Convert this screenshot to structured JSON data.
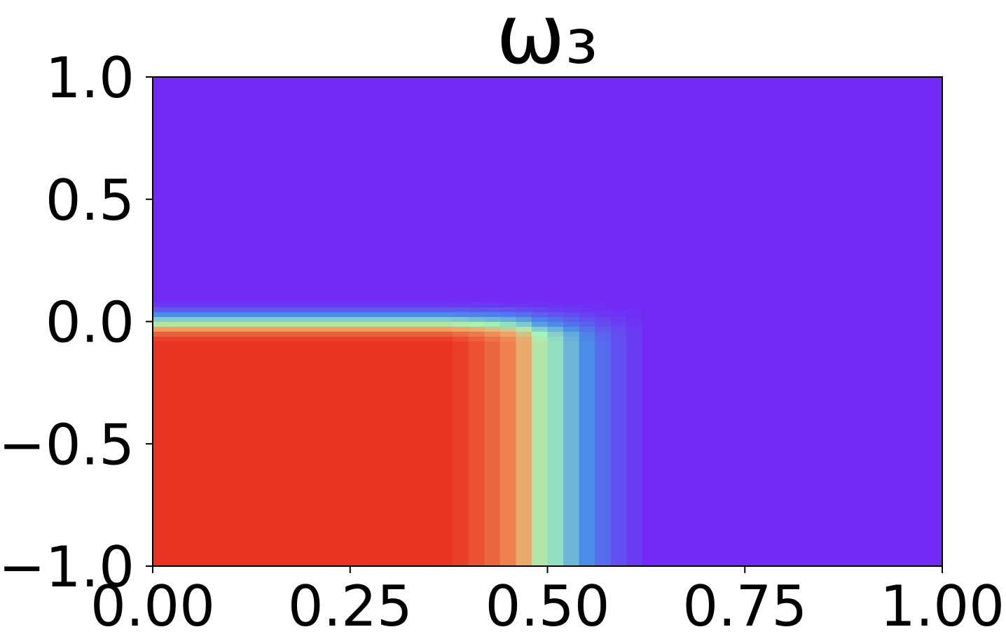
{
  "chart_data": {
    "type": "heatmap",
    "title": "ω₃",
    "xbins": [
      0,
      0.38,
      0.4,
      0.42,
      0.44,
      0.46,
      0.48,
      0.5,
      0.52,
      0.54,
      0.56,
      0.58,
      0.6,
      0.62,
      1.0
    ],
    "ybins": [
      -1,
      -0.1,
      -0.08,
      -0.06,
      -0.04,
      -0.02,
      0,
      0.02,
      0.04,
      0.06,
      0.08,
      1
    ],
    "z": [
      [
        1,
        0.97,
        0.93,
        0.88,
        0.82,
        0.72,
        0.55,
        0.45,
        0.35,
        0.25,
        0.17,
        0.1,
        0.05,
        0
      ],
      [
        1,
        0.97,
        0.93,
        0.88,
        0.82,
        0.72,
        0.55,
        0.45,
        0.35,
        0.25,
        0.17,
        0.1,
        0.05,
        0
      ],
      [
        0.97,
        0.94,
        0.9,
        0.85,
        0.8,
        0.7,
        0.53,
        0.44,
        0.34,
        0.24,
        0.16,
        0.1,
        0.05,
        0
      ],
      [
        0.9,
        0.87,
        0.84,
        0.79,
        0.74,
        0.65,
        0.5,
        0.41,
        0.32,
        0.23,
        0.15,
        0.09,
        0.05,
        0
      ],
      [
        0.75,
        0.73,
        0.7,
        0.66,
        0.62,
        0.54,
        0.41,
        0.34,
        0.26,
        0.19,
        0.13,
        0.08,
        0.04,
        0
      ],
      [
        0.55,
        0.53,
        0.51,
        0.48,
        0.45,
        0.4,
        0.3,
        0.25,
        0.19,
        0.14,
        0.09,
        0.06,
        0.03,
        0
      ],
      [
        0.4,
        0.39,
        0.37,
        0.35,
        0.33,
        0.29,
        0.22,
        0.18,
        0.14,
        0.1,
        0.07,
        0.04,
        0.02,
        0
      ],
      [
        0.25,
        0.24,
        0.23,
        0.22,
        0.21,
        0.18,
        0.14,
        0.11,
        0.09,
        0.06,
        0.04,
        0.03,
        0.01,
        0
      ],
      [
        0.12,
        0.12,
        0.11,
        0.11,
        0.1,
        0.09,
        0.07,
        0.05,
        0.04,
        0.03,
        0.02,
        0.01,
        0.01,
        0
      ],
      [
        0.04,
        0.04,
        0.04,
        0.04,
        0.03,
        0.03,
        0.02,
        0.02,
        0.01,
        0.01,
        0.01,
        0,
        0,
        0
      ],
      [
        0,
        0,
        0,
        0,
        0,
        0,
        0,
        0,
        0,
        0,
        0,
        0,
        0,
        0
      ]
    ],
    "zlim": [
      0,
      1
    ],
    "colorscale": [
      "#7229f5",
      "#4a8ce8",
      "#a4f5b9",
      "#f0a060",
      "#e93323"
    ],
    "xlim": [
      0,
      1
    ],
    "ylim": [
      -1,
      1
    ],
    "xticks": [
      {
        "value": 0,
        "label": "0.00"
      },
      {
        "value": 0.25,
        "label": "0.25"
      },
      {
        "value": 0.5,
        "label": "0.50"
      },
      {
        "value": 0.75,
        "label": "0.75"
      },
      {
        "value": 1,
        "label": "1.00"
      }
    ],
    "yticks": [
      {
        "value": -1,
        "label": "−1.0"
      },
      {
        "value": -0.5,
        "label": "−0.5"
      },
      {
        "value": 0,
        "label": "0.0"
      },
      {
        "value": 0.5,
        "label": "0.5"
      },
      {
        "value": 1,
        "label": "1.0"
      }
    ]
  }
}
